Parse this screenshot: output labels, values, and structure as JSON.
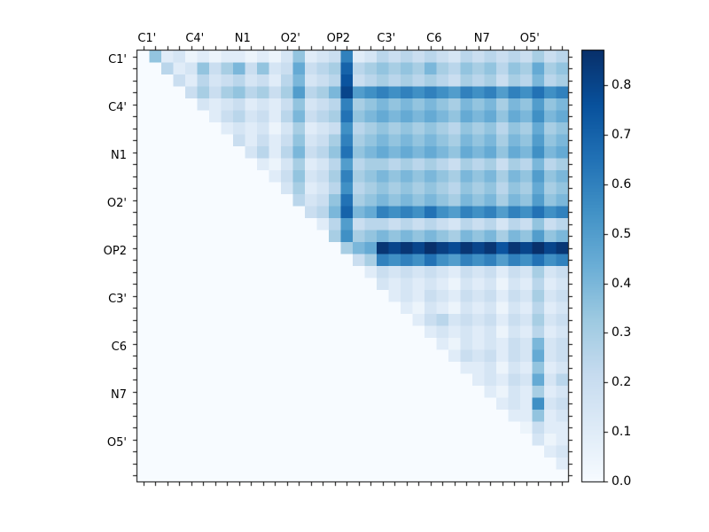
{
  "figure": {
    "background": "#ffffff",
    "frame_color": "#000000"
  },
  "chart_data": {
    "type": "heatmap",
    "colormap": "Blues",
    "vmin": 0.0,
    "vmax": 0.87,
    "cells_per_group": 4,
    "n_cells": 36,
    "x_axis_labels": [
      "C1'",
      "C4'",
      "N1",
      "O2'",
      "OP2",
      "C3'",
      "C6",
      "N7",
      "O5'"
    ],
    "y_axis_labels": [
      "C1'",
      "C4'",
      "N1",
      "O2'",
      "OP2",
      "C3'",
      "C6",
      "N7",
      "O5'"
    ],
    "colorbar_ticks": [
      0.0,
      0.1,
      0.2,
      0.3,
      0.4,
      0.5,
      0.6,
      0.7,
      0.8
    ],
    "colormap_anchors": [
      [
        247,
        251,
        255
      ],
      [
        222,
        235,
        247
      ],
      [
        198,
        219,
        239
      ],
      [
        158,
        202,
        225
      ],
      [
        107,
        174,
        214
      ],
      [
        66,
        146,
        198
      ],
      [
        33,
        113,
        181
      ],
      [
        8,
        81,
        156
      ],
      [
        8,
        48,
        107
      ]
    ],
    "matrix": [
      [
        0,
        0.35,
        0.1,
        0.15,
        0.05,
        0.1,
        0.05,
        0.1,
        0.1,
        0.05,
        0.1,
        0.05,
        0.15,
        0.35,
        0.1,
        0.15,
        0.2,
        0.6,
        0.1,
        0.15,
        0.25,
        0.2,
        0.25,
        0.2,
        0.25,
        0.2,
        0.15,
        0.25,
        0.2,
        0.25,
        0.2,
        0.25,
        0.2,
        0.3,
        0.2,
        0.25
      ],
      [
        0,
        0,
        0.25,
        0.1,
        0.15,
        0.35,
        0.2,
        0.3,
        0.4,
        0.2,
        0.35,
        0.15,
        0.2,
        0.45,
        0.2,
        0.25,
        0.3,
        0.7,
        0.25,
        0.3,
        0.35,
        0.3,
        0.35,
        0.3,
        0.4,
        0.3,
        0.25,
        0.35,
        0.3,
        0.35,
        0.25,
        0.35,
        0.3,
        0.45,
        0.3,
        0.35
      ],
      [
        0,
        0,
        0,
        0.2,
        0.1,
        0.25,
        0.15,
        0.2,
        0.25,
        0.15,
        0.2,
        0.1,
        0.25,
        0.4,
        0.15,
        0.2,
        0.25,
        0.75,
        0.2,
        0.25,
        0.3,
        0.25,
        0.3,
        0.25,
        0.3,
        0.25,
        0.2,
        0.3,
        0.25,
        0.3,
        0.2,
        0.3,
        0.25,
        0.4,
        0.25,
        0.3
      ],
      [
        0,
        0,
        0,
        0,
        0.2,
        0.3,
        0.2,
        0.3,
        0.35,
        0.25,
        0.3,
        0.2,
        0.3,
        0.5,
        0.25,
        0.3,
        0.4,
        0.8,
        0.5,
        0.55,
        0.6,
        0.55,
        0.6,
        0.55,
        0.6,
        0.55,
        0.5,
        0.6,
        0.55,
        0.6,
        0.5,
        0.6,
        0.55,
        0.65,
        0.55,
        0.6
      ],
      [
        0,
        0,
        0,
        0,
        0,
        0.15,
        0.1,
        0.15,
        0.2,
        0.1,
        0.15,
        0.1,
        0.2,
        0.35,
        0.15,
        0.2,
        0.25,
        0.6,
        0.3,
        0.35,
        0.4,
        0.35,
        0.4,
        0.35,
        0.4,
        0.35,
        0.3,
        0.4,
        0.35,
        0.4,
        0.3,
        0.4,
        0.35,
        0.5,
        0.35,
        0.4
      ],
      [
        0,
        0,
        0,
        0,
        0,
        0,
        0.1,
        0.2,
        0.25,
        0.15,
        0.2,
        0.1,
        0.25,
        0.4,
        0.2,
        0.25,
        0.3,
        0.65,
        0.35,
        0.4,
        0.45,
        0.4,
        0.45,
        0.4,
        0.45,
        0.4,
        0.35,
        0.45,
        0.4,
        0.45,
        0.35,
        0.45,
        0.4,
        0.55,
        0.4,
        0.45
      ],
      [
        0,
        0,
        0,
        0,
        0,
        0,
        0,
        0.1,
        0.15,
        0.1,
        0.15,
        0.05,
        0.15,
        0.3,
        0.1,
        0.15,
        0.2,
        0.55,
        0.25,
        0.3,
        0.35,
        0.3,
        0.35,
        0.3,
        0.35,
        0.3,
        0.25,
        0.35,
        0.3,
        0.35,
        0.25,
        0.35,
        0.3,
        0.45,
        0.3,
        0.35
      ],
      [
        0,
        0,
        0,
        0,
        0,
        0,
        0,
        0,
        0.2,
        0.1,
        0.2,
        0.1,
        0.2,
        0.35,
        0.15,
        0.2,
        0.3,
        0.6,
        0.3,
        0.35,
        0.4,
        0.35,
        0.4,
        0.35,
        0.4,
        0.35,
        0.3,
        0.4,
        0.35,
        0.4,
        0.3,
        0.4,
        0.35,
        0.5,
        0.35,
        0.4
      ],
      [
        0,
        0,
        0,
        0,
        0,
        0,
        0,
        0,
        0,
        0.15,
        0.25,
        0.1,
        0.25,
        0.4,
        0.2,
        0.25,
        0.35,
        0.65,
        0.35,
        0.4,
        0.45,
        0.4,
        0.45,
        0.4,
        0.45,
        0.4,
        0.35,
        0.45,
        0.4,
        0.45,
        0.35,
        0.45,
        0.4,
        0.55,
        0.4,
        0.45
      ],
      [
        0,
        0,
        0,
        0,
        0,
        0,
        0,
        0,
        0,
        0,
        0.1,
        0.05,
        0.15,
        0.3,
        0.1,
        0.15,
        0.25,
        0.5,
        0.25,
        0.3,
        0.3,
        0.25,
        0.3,
        0.25,
        0.3,
        0.25,
        0.2,
        0.3,
        0.25,
        0.3,
        0.2,
        0.3,
        0.25,
        0.4,
        0.25,
        0.3
      ],
      [
        0,
        0,
        0,
        0,
        0,
        0,
        0,
        0,
        0,
        0,
        0,
        0.1,
        0.2,
        0.35,
        0.15,
        0.2,
        0.3,
        0.6,
        0.3,
        0.35,
        0.4,
        0.35,
        0.4,
        0.35,
        0.4,
        0.35,
        0.3,
        0.4,
        0.35,
        0.4,
        0.3,
        0.4,
        0.35,
        0.5,
        0.35,
        0.4
      ],
      [
        0,
        0,
        0,
        0,
        0,
        0,
        0,
        0,
        0,
        0,
        0,
        0,
        0.15,
        0.3,
        0.1,
        0.15,
        0.25,
        0.55,
        0.25,
        0.3,
        0.35,
        0.3,
        0.35,
        0.3,
        0.35,
        0.3,
        0.25,
        0.35,
        0.3,
        0.35,
        0.25,
        0.35,
        0.3,
        0.45,
        0.3,
        0.35
      ],
      [
        0,
        0,
        0,
        0,
        0,
        0,
        0,
        0,
        0,
        0,
        0,
        0,
        0,
        0.25,
        0.15,
        0.2,
        0.35,
        0.65,
        0.3,
        0.35,
        0.4,
        0.35,
        0.4,
        0.35,
        0.4,
        0.35,
        0.3,
        0.4,
        0.35,
        0.4,
        0.3,
        0.4,
        0.35,
        0.5,
        0.35,
        0.4
      ],
      [
        0,
        0,
        0,
        0,
        0,
        0,
        0,
        0,
        0,
        0,
        0,
        0,
        0,
        0,
        0.2,
        0.25,
        0.4,
        0.7,
        0.4,
        0.45,
        0.6,
        0.55,
        0.6,
        0.55,
        0.65,
        0.55,
        0.5,
        0.6,
        0.55,
        0.6,
        0.5,
        0.6,
        0.55,
        0.65,
        0.55,
        0.6
      ],
      [
        0,
        0,
        0,
        0,
        0,
        0,
        0,
        0,
        0,
        0,
        0,
        0,
        0,
        0,
        0,
        0.1,
        0.25,
        0.5,
        0.2,
        0.25,
        0.25,
        0.2,
        0.25,
        0.2,
        0.25,
        0.2,
        0.15,
        0.25,
        0.2,
        0.25,
        0.15,
        0.25,
        0.2,
        0.35,
        0.2,
        0.25
      ],
      [
        0,
        0,
        0,
        0,
        0,
        0,
        0,
        0,
        0,
        0,
        0,
        0,
        0,
        0,
        0,
        0,
        0.3,
        0.55,
        0.3,
        0.35,
        0.4,
        0.35,
        0.4,
        0.35,
        0.4,
        0.35,
        0.3,
        0.4,
        0.35,
        0.4,
        0.3,
        0.4,
        0.35,
        0.5,
        0.35,
        0.4
      ],
      [
        0,
        0,
        0,
        0,
        0,
        0,
        0,
        0,
        0,
        0,
        0,
        0,
        0,
        0,
        0,
        0,
        0,
        0.3,
        0.4,
        0.45,
        0.85,
        0.8,
        0.85,
        0.8,
        0.88,
        0.82,
        0.78,
        0.85,
        0.8,
        0.85,
        0.75,
        0.85,
        0.8,
        0.88,
        0.8,
        0.85
      ],
      [
        0,
        0,
        0,
        0,
        0,
        0,
        0,
        0,
        0,
        0,
        0,
        0,
        0,
        0,
        0,
        0,
        0,
        0,
        0.2,
        0.3,
        0.6,
        0.55,
        0.6,
        0.55,
        0.65,
        0.55,
        0.5,
        0.6,
        0.55,
        0.6,
        0.5,
        0.6,
        0.55,
        0.65,
        0.55,
        0.6
      ],
      [
        0,
        0,
        0,
        0,
        0,
        0,
        0,
        0,
        0,
        0,
        0,
        0,
        0,
        0,
        0,
        0,
        0,
        0,
        0,
        0.1,
        0.2,
        0.15,
        0.2,
        0.15,
        0.2,
        0.15,
        0.1,
        0.2,
        0.15,
        0.2,
        0.1,
        0.2,
        0.15,
        0.3,
        0.15,
        0.2
      ],
      [
        0,
        0,
        0,
        0,
        0,
        0,
        0,
        0,
        0,
        0,
        0,
        0,
        0,
        0,
        0,
        0,
        0,
        0,
        0,
        0,
        0.15,
        0.1,
        0.15,
        0.1,
        0.15,
        0.1,
        0.05,
        0.15,
        0.1,
        0.15,
        0.05,
        0.15,
        0.1,
        0.25,
        0.1,
        0.15
      ],
      [
        0,
        0,
        0,
        0,
        0,
        0,
        0,
        0,
        0,
        0,
        0,
        0,
        0,
        0,
        0,
        0,
        0,
        0,
        0,
        0,
        0,
        0.1,
        0.15,
        0.1,
        0.2,
        0.15,
        0.1,
        0.2,
        0.15,
        0.2,
        0.1,
        0.2,
        0.15,
        0.3,
        0.15,
        0.2
      ],
      [
        0,
        0,
        0,
        0,
        0,
        0,
        0,
        0,
        0,
        0,
        0,
        0,
        0,
        0,
        0,
        0,
        0,
        0,
        0,
        0,
        0,
        0,
        0.1,
        0.05,
        0.15,
        0.1,
        0.05,
        0.15,
        0.1,
        0.15,
        0.05,
        0.15,
        0.1,
        0.25,
        0.1,
        0.15
      ],
      [
        0,
        0,
        0,
        0,
        0,
        0,
        0,
        0,
        0,
        0,
        0,
        0,
        0,
        0,
        0,
        0,
        0,
        0,
        0,
        0,
        0,
        0,
        0,
        0.1,
        0.2,
        0.25,
        0.15,
        0.2,
        0.15,
        0.2,
        0.1,
        0.2,
        0.15,
        0.3,
        0.15,
        0.2
      ],
      [
        0,
        0,
        0,
        0,
        0,
        0,
        0,
        0,
        0,
        0,
        0,
        0,
        0,
        0,
        0,
        0,
        0,
        0,
        0,
        0,
        0,
        0,
        0,
        0,
        0.1,
        0.15,
        0.1,
        0.15,
        0.1,
        0.15,
        0.05,
        0.15,
        0.1,
        0.25,
        0.1,
        0.15
      ],
      [
        0,
        0,
        0,
        0,
        0,
        0,
        0,
        0,
        0,
        0,
        0,
        0,
        0,
        0,
        0,
        0,
        0,
        0,
        0,
        0,
        0,
        0,
        0,
        0,
        0,
        0.1,
        0.05,
        0.15,
        0.1,
        0.15,
        0.1,
        0.2,
        0.15,
        0.4,
        0.15,
        0.2
      ],
      [
        0,
        0,
        0,
        0,
        0,
        0,
        0,
        0,
        0,
        0,
        0,
        0,
        0,
        0,
        0,
        0,
        0,
        0,
        0,
        0,
        0,
        0,
        0,
        0,
        0,
        0,
        0.1,
        0.2,
        0.15,
        0.2,
        0.1,
        0.2,
        0.15,
        0.45,
        0.15,
        0.2
      ],
      [
        0,
        0,
        0,
        0,
        0,
        0,
        0,
        0,
        0,
        0,
        0,
        0,
        0,
        0,
        0,
        0,
        0,
        0,
        0,
        0,
        0,
        0,
        0,
        0,
        0,
        0,
        0,
        0.1,
        0.1,
        0.15,
        0.05,
        0.15,
        0.1,
        0.35,
        0.1,
        0.15
      ],
      [
        0,
        0,
        0,
        0,
        0,
        0,
        0,
        0,
        0,
        0,
        0,
        0,
        0,
        0,
        0,
        0,
        0,
        0,
        0,
        0,
        0,
        0,
        0,
        0,
        0,
        0,
        0,
        0,
        0.1,
        0.15,
        0.1,
        0.2,
        0.15,
        0.45,
        0.15,
        0.25
      ],
      [
        0,
        0,
        0,
        0,
        0,
        0,
        0,
        0,
        0,
        0,
        0,
        0,
        0,
        0,
        0,
        0,
        0,
        0,
        0,
        0,
        0,
        0,
        0,
        0,
        0,
        0,
        0,
        0,
        0,
        0.1,
        0.05,
        0.15,
        0.1,
        0.3,
        0.1,
        0.15
      ],
      [
        0,
        0,
        0,
        0,
        0,
        0,
        0,
        0,
        0,
        0,
        0,
        0,
        0,
        0,
        0,
        0,
        0,
        0,
        0,
        0,
        0,
        0,
        0,
        0,
        0,
        0,
        0,
        0,
        0,
        0,
        0.1,
        0.15,
        0.1,
        0.55,
        0.15,
        0.2
      ],
      [
        0,
        0,
        0,
        0,
        0,
        0,
        0,
        0,
        0,
        0,
        0,
        0,
        0,
        0,
        0,
        0,
        0,
        0,
        0,
        0,
        0,
        0,
        0,
        0,
        0,
        0,
        0,
        0,
        0,
        0,
        0,
        0.1,
        0.1,
        0.35,
        0.1,
        0.15
      ],
      [
        0,
        0,
        0,
        0,
        0,
        0,
        0,
        0,
        0,
        0,
        0,
        0,
        0,
        0,
        0,
        0,
        0,
        0,
        0,
        0,
        0,
        0,
        0,
        0,
        0,
        0,
        0,
        0,
        0,
        0,
        0,
        0,
        0.05,
        0.2,
        0.1,
        0.1
      ],
      [
        0,
        0,
        0,
        0,
        0,
        0,
        0,
        0,
        0,
        0,
        0,
        0,
        0,
        0,
        0,
        0,
        0,
        0,
        0,
        0,
        0,
        0,
        0,
        0,
        0,
        0,
        0,
        0,
        0,
        0,
        0,
        0,
        0,
        0.15,
        0.05,
        0.1
      ],
      [
        0,
        0,
        0,
        0,
        0,
        0,
        0,
        0,
        0,
        0,
        0,
        0,
        0,
        0,
        0,
        0,
        0,
        0,
        0,
        0,
        0,
        0,
        0,
        0,
        0,
        0,
        0,
        0,
        0,
        0,
        0,
        0,
        0,
        0,
        0.1,
        0.15
      ],
      [
        0,
        0,
        0,
        0,
        0,
        0,
        0,
        0,
        0,
        0,
        0,
        0,
        0,
        0,
        0,
        0,
        0,
        0,
        0,
        0,
        0,
        0,
        0,
        0,
        0,
        0,
        0,
        0,
        0,
        0,
        0,
        0,
        0,
        0,
        0,
        0.1
      ],
      [
        0,
        0,
        0,
        0,
        0,
        0,
        0,
        0,
        0,
        0,
        0,
        0,
        0,
        0,
        0,
        0,
        0,
        0,
        0,
        0,
        0,
        0,
        0,
        0,
        0,
        0,
        0,
        0,
        0,
        0,
        0,
        0,
        0,
        0,
        0,
        0
      ]
    ]
  }
}
